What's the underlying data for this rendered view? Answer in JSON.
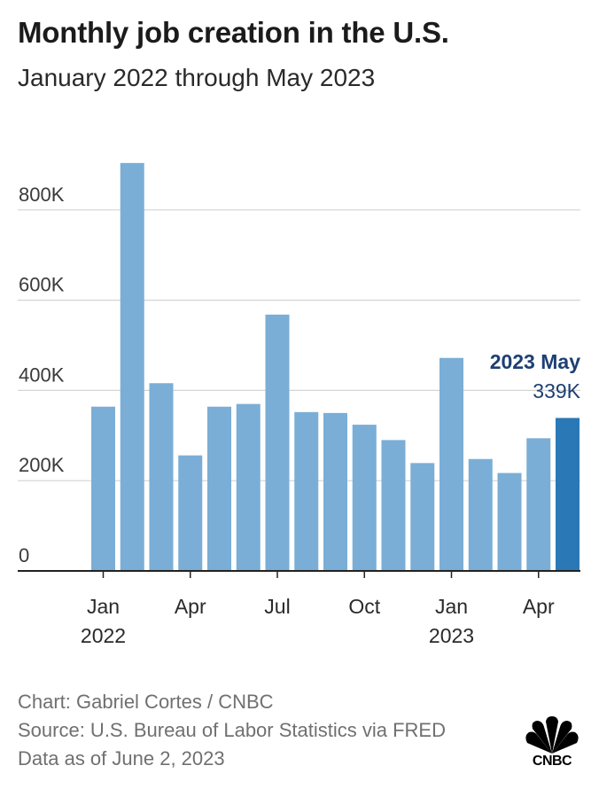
{
  "header": {
    "title": "Monthly job creation in the U.S.",
    "subtitle": "January 2022 through May 2023"
  },
  "chart_data": {
    "type": "bar",
    "title": "Monthly job creation in the U.S.",
    "subtitle": "January 2022 through May 2023",
    "categories": [
      "2022-01",
      "2022-02",
      "2022-03",
      "2022-04",
      "2022-05",
      "2022-06",
      "2022-07",
      "2022-08",
      "2022-09",
      "2022-10",
      "2022-11",
      "2022-12",
      "2023-01",
      "2023-02",
      "2023-03",
      "2023-04",
      "2023-05"
    ],
    "values": [
      364000,
      904000,
      416000,
      256000,
      364000,
      370000,
      568000,
      352000,
      350000,
      324000,
      290000,
      239000,
      472000,
      248000,
      217000,
      294000,
      339000
    ],
    "ylim": [
      0,
      920000
    ],
    "yticks": [
      0,
      200000,
      400000,
      600000,
      800000
    ],
    "ytick_labels": [
      "0",
      "200K",
      "400K",
      "600K",
      "800K"
    ],
    "xticks": [
      {
        "index": 0,
        "label": "Jan",
        "sublabel": "2022"
      },
      {
        "index": 3,
        "label": "Apr",
        "sublabel": ""
      },
      {
        "index": 6,
        "label": "Jul",
        "sublabel": ""
      },
      {
        "index": 9,
        "label": "Oct",
        "sublabel": ""
      },
      {
        "index": 12,
        "label": "Jan",
        "sublabel": "2023"
      },
      {
        "index": 15,
        "label": "Apr",
        "sublabel": ""
      }
    ],
    "xlabel": "",
    "ylabel": "",
    "grid": true,
    "highlight": {
      "index": 16,
      "label": "2023 May",
      "value_label": "339K"
    },
    "colors": {
      "bar": "#7aaed6",
      "highlight_bar": "#2a78b5",
      "highlight_text": "#1d3f73",
      "grid": "#d4d4d4",
      "axis": "#222222"
    }
  },
  "footer": {
    "credit": "Chart: Gabriel Cortes / CNBC",
    "source": "Source: U.S. Bureau of Labor Statistics via FRED",
    "date": "Data as of June 2, 2023"
  },
  "logo": {
    "text": "CNBC",
    "icon": "cnbc-peacock-logo"
  }
}
